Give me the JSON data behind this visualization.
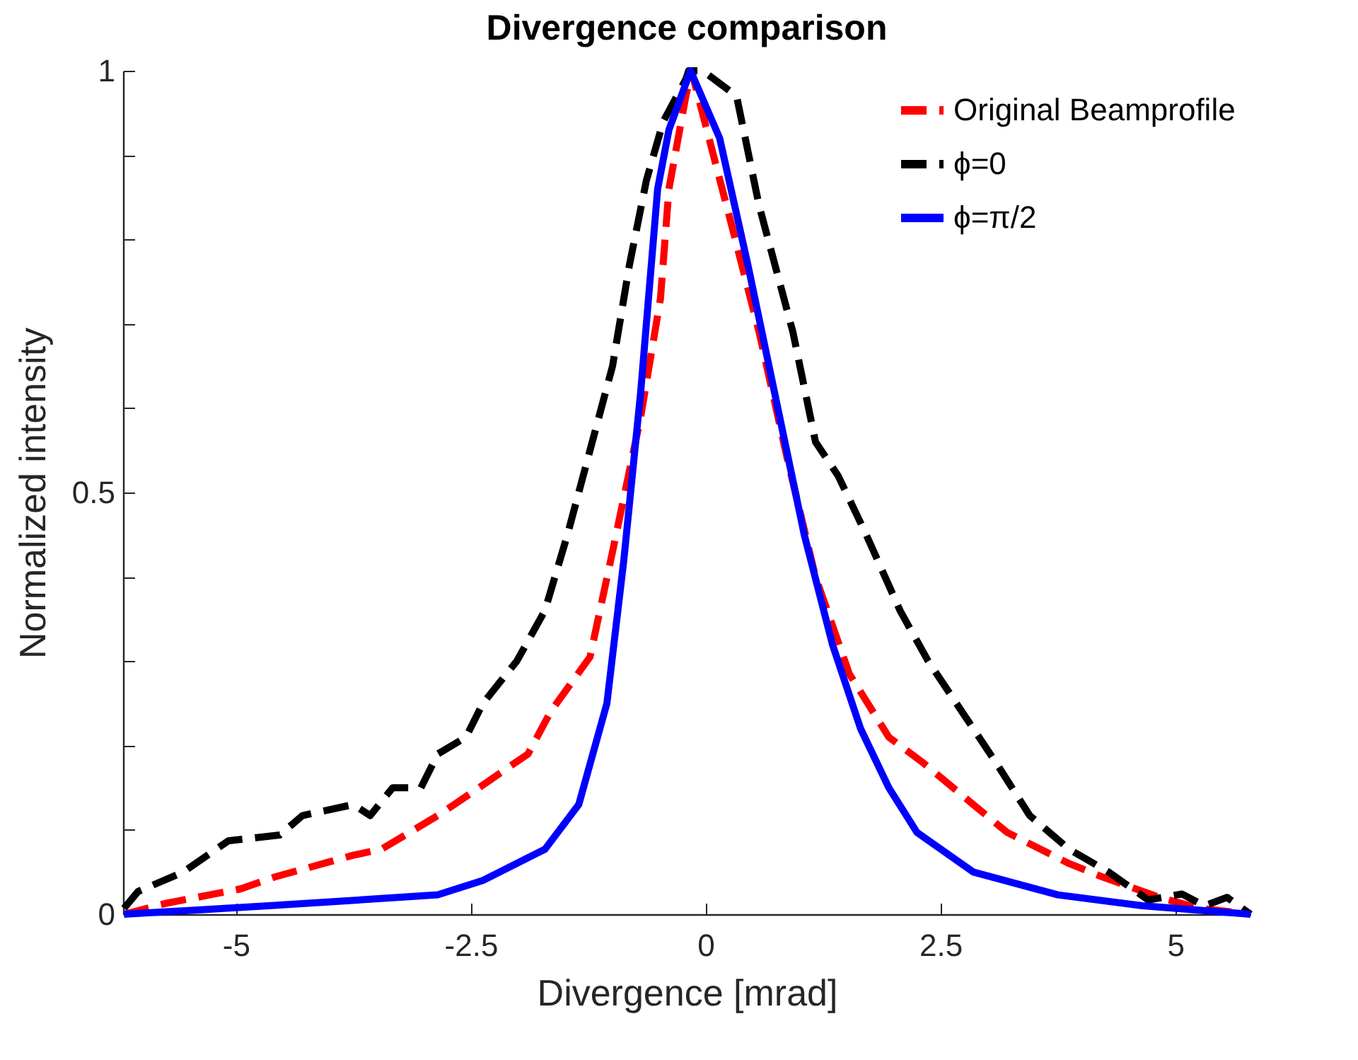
{
  "chart_data": {
    "type": "line",
    "title": "Divergence comparison",
    "xlabel": "Divergence [mrad]",
    "ylabel": "Normalized intensity",
    "xlim": [
      -6.2,
      5.8
    ],
    "xticks": [
      -5,
      -2.5,
      0,
      2.5,
      5
    ],
    "ylim": [
      0,
      1
    ],
    "yticks": [
      0,
      {
        "value": 0.1,
        "label": null
      },
      {
        "value": 0.2,
        "label": null
      },
      {
        "value": 0.3,
        "label": null
      },
      {
        "value": 0.4,
        "label": null
      },
      0.5,
      {
        "value": 0.6,
        "label": null
      },
      {
        "value": 0.7,
        "label": null
      },
      {
        "value": 0.8,
        "label": null
      },
      {
        "value": 0.9,
        "label": null
      },
      1
    ],
    "grid": false,
    "legend": "top right",
    "marker": "none",
    "series": [
      {
        "name": "Original Beamprofile",
        "color": "#ff0000",
        "line_style": "dashed",
        "x": [
          -6.19,
          -5.74,
          -4.95,
          -4.59,
          -3.75,
          -3.45,
          -2.85,
          -2.49,
          -1.89,
          -1.65,
          -1.23,
          -0.99,
          -0.69,
          -0.48,
          -0.39,
          -0.21,
          -0.15,
          0.27,
          0.57,
          0.87,
          1.17,
          1.53,
          1.95,
          2.31,
          2.85,
          3.21,
          3.87,
          4.23,
          4.83,
          5.26,
          5.8
        ],
        "values": [
          0,
          0.013,
          0.03,
          0.044,
          0.07,
          0.077,
          0.117,
          0.144,
          0.19,
          0.24,
          0.305,
          0.43,
          0.59,
          0.73,
          0.86,
          0.97,
          1,
          0.82,
          0.69,
          0.54,
          0.4,
          0.285,
          0.21,
          0.18,
          0.13,
          0.097,
          0.06,
          0.044,
          0.02,
          0.007,
          0
        ]
      },
      {
        "name": "ϕ=0",
        "color": "#000000",
        "line_style": "dashed",
        "x": [
          -6.19,
          -6.04,
          -5.56,
          -5.08,
          -4.53,
          -4.29,
          -3.75,
          -3.57,
          -3.33,
          -3.03,
          -2.85,
          -2.55,
          -2.37,
          -2.01,
          -1.71,
          -1.47,
          -1.23,
          -0.99,
          -0.81,
          -0.63,
          -0.45,
          -0.21,
          -0.18,
          -0.03,
          0.33,
          0.57,
          0.93,
          1.17,
          1.41,
          1.71,
          2.07,
          2.37,
          2.73,
          3.09,
          3.45,
          3.87,
          4.29,
          4.71,
          5.07,
          5.31,
          5.55,
          5.8
        ],
        "values": [
          0.007,
          0.027,
          0.05,
          0.087,
          0.094,
          0.117,
          0.13,
          0.117,
          0.15,
          0.15,
          0.19,
          0.21,
          0.25,
          0.3,
          0.36,
          0.45,
          0.55,
          0.65,
          0.77,
          0.87,
          0.94,
          0.99,
          1,
          1,
          0.97,
          0.84,
          0.69,
          0.56,
          0.52,
          0.45,
          0.36,
          0.3,
          0.24,
          0.18,
          0.117,
          0.077,
          0.05,
          0.017,
          0.024,
          0.01,
          0.02,
          0
        ]
      },
      {
        "name": "ϕ=π/2",
        "color": "#0000ff",
        "line_style": "solid",
        "x": [
          -6.19,
          -4.65,
          -2.85,
          -2.37,
          -1.71,
          -1.35,
          -1.05,
          -0.87,
          -0.69,
          -0.51,
          -0.39,
          -0.16,
          0.15,
          0.45,
          0.75,
          1.05,
          1.35,
          1.65,
          1.95,
          2.25,
          2.85,
          3.75,
          4.65,
          5.8
        ],
        "values": [
          0,
          0.01,
          0.023,
          0.04,
          0.077,
          0.13,
          0.25,
          0.42,
          0.62,
          0.86,
          0.93,
          1,
          0.92,
          0.77,
          0.61,
          0.45,
          0.32,
          0.22,
          0.15,
          0.097,
          0.05,
          0.023,
          0.01,
          0
        ]
      }
    ]
  }
}
